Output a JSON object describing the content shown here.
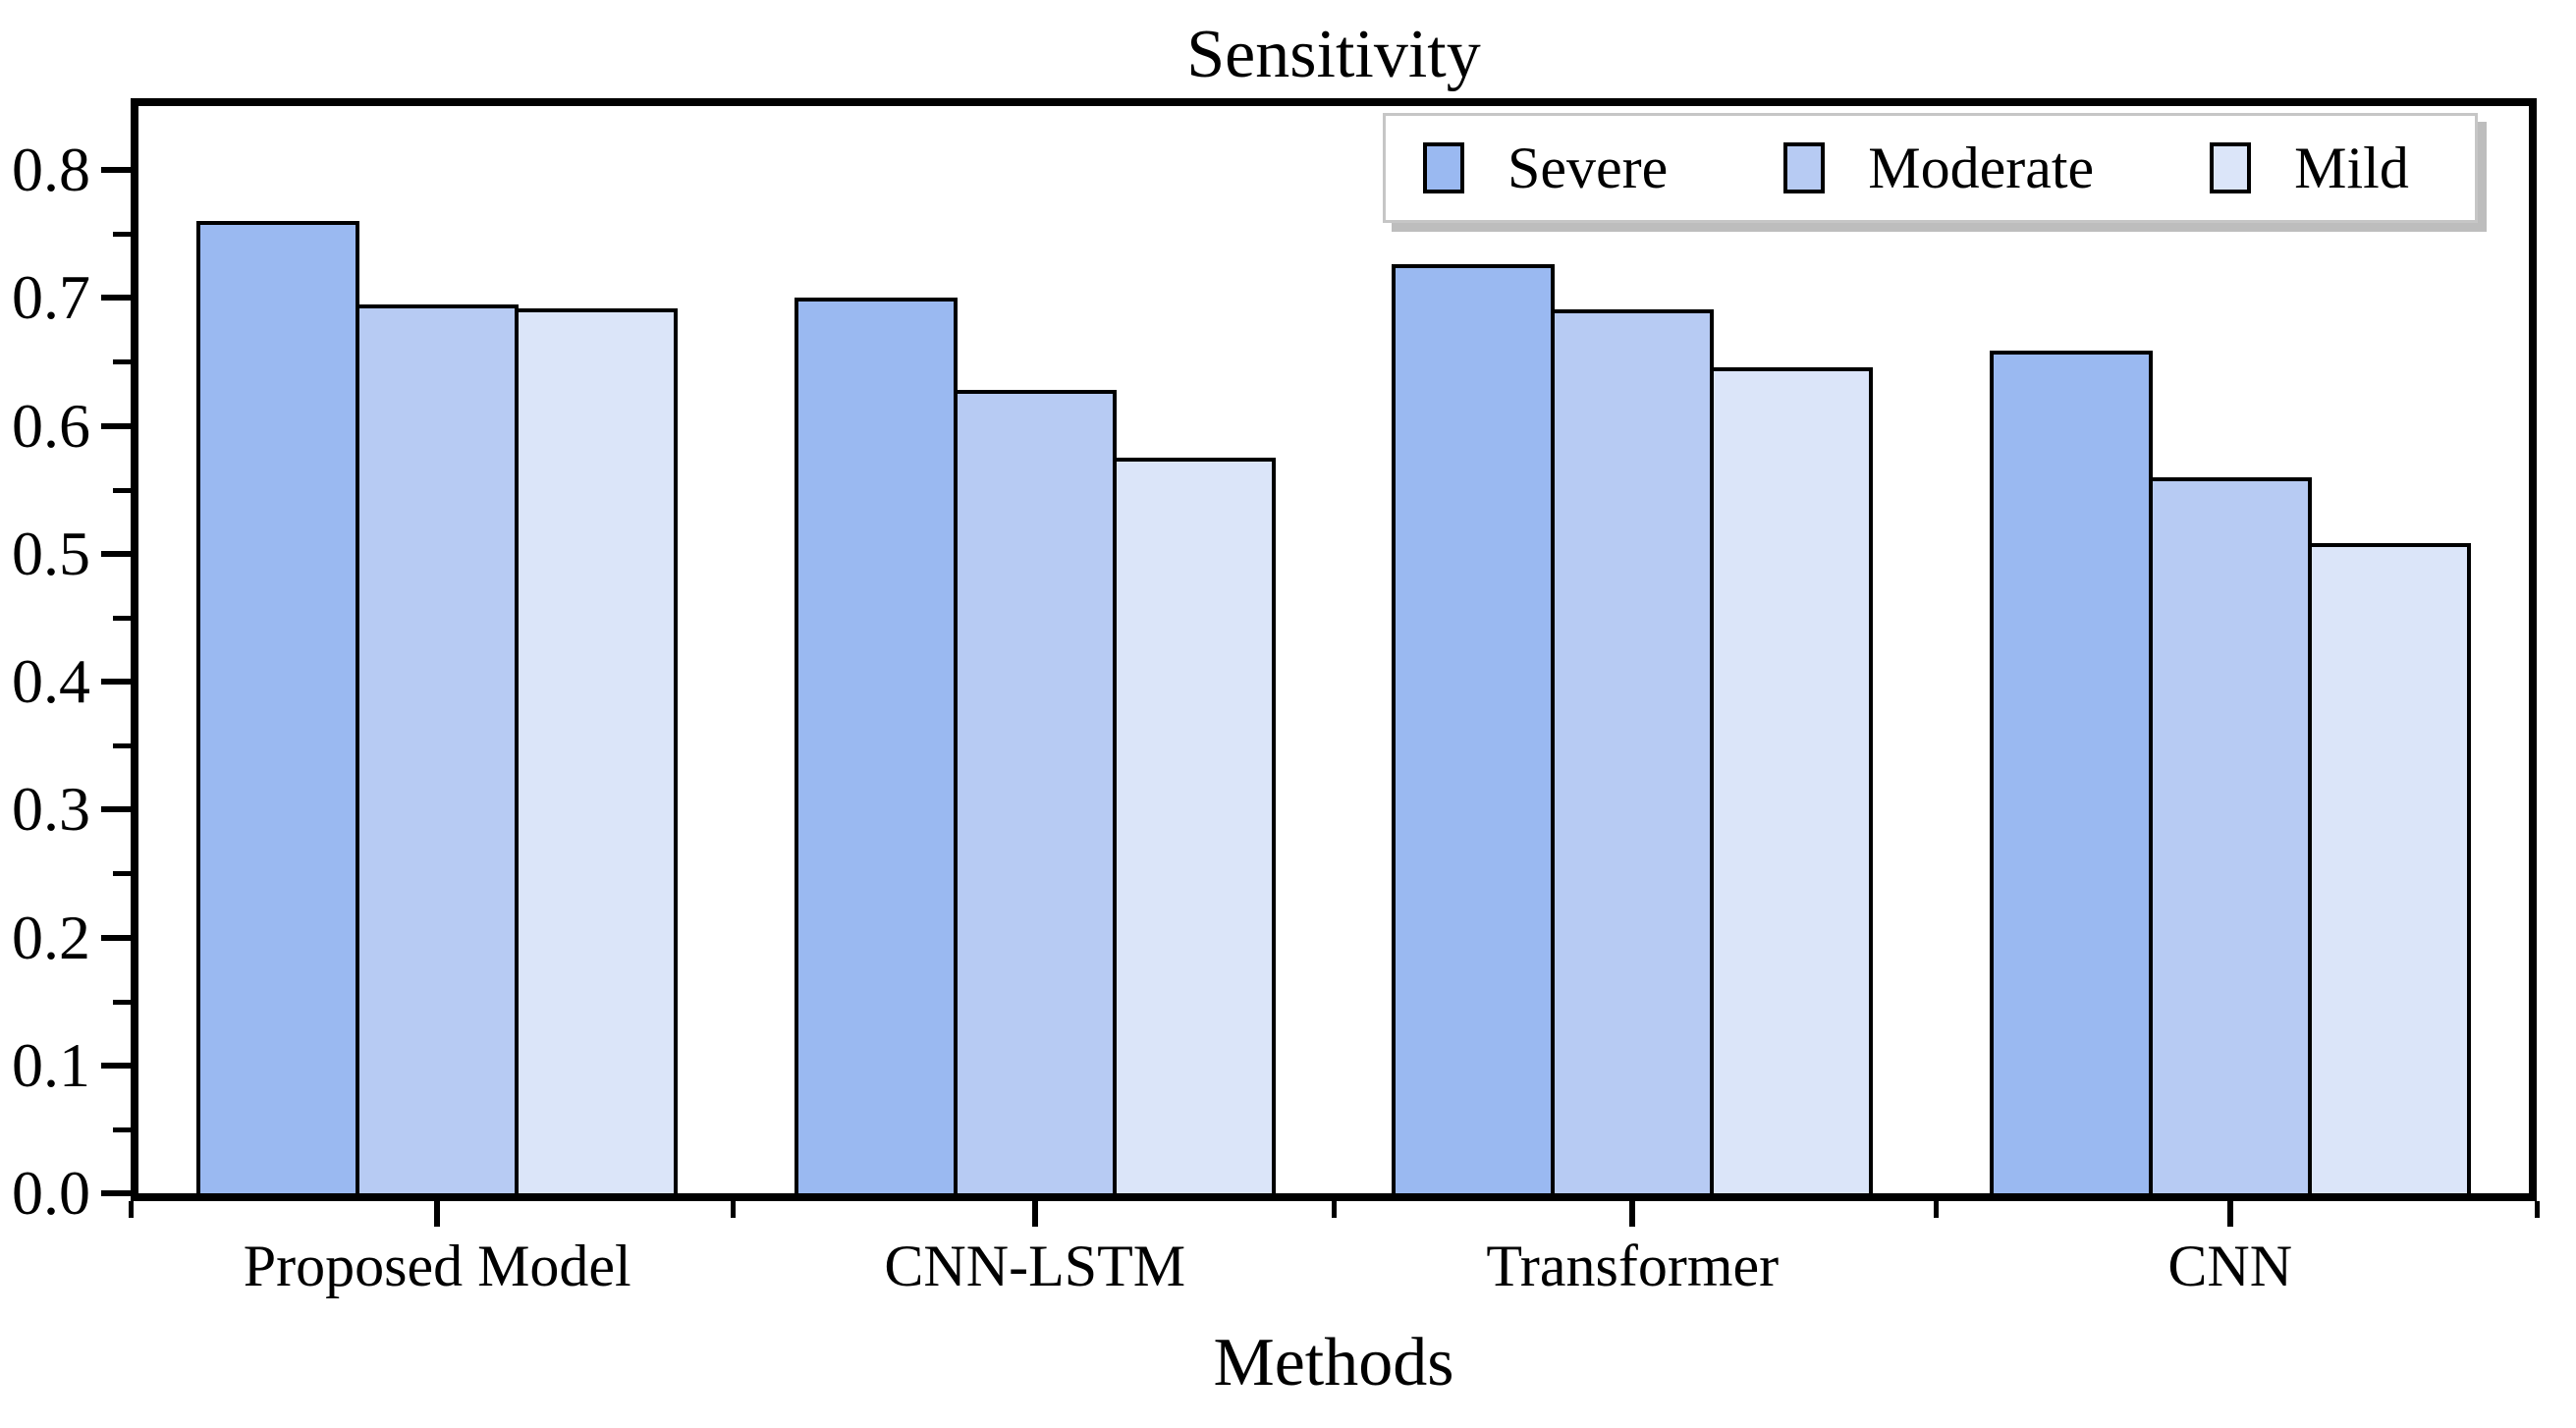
{
  "chart_data": {
    "type": "bar",
    "title": "Sensitivity",
    "xlabel": "Methods",
    "ylabel": "",
    "categories": [
      "Proposed Model",
      "CNN-LSTM",
      "Transformer",
      "CNN"
    ],
    "series": [
      {
        "name": "Severe",
        "color": "#9ab9f1",
        "values": [
          0.76,
          0.7,
          0.726,
          0.659
        ]
      },
      {
        "name": "Moderate",
        "color": "#b7cbf3",
        "values": [
          0.695,
          0.628,
          0.691,
          0.56
        ]
      },
      {
        "name": "Mild",
        "color": "#dbe5f9",
        "values": [
          0.692,
          0.575,
          0.646,
          0.508
        ]
      }
    ],
    "ylim": [
      0.0,
      0.85
    ],
    "yticks_major": [
      0.0,
      0.1,
      0.2,
      0.3,
      0.4,
      0.5,
      0.6,
      0.7,
      0.8
    ],
    "ytick_labels": [
      "0.0",
      "0.1",
      "0.2",
      "0.3",
      "0.4",
      "0.5",
      "0.6",
      "0.7",
      "0.8"
    ],
    "yticks_minor": [
      0.05,
      0.15,
      0.25,
      0.35,
      0.45,
      0.55,
      0.65,
      0.75
    ],
    "grid": false,
    "legend_position": "top-right",
    "bar_border_color": "#000000"
  },
  "style_colors": {
    "legend_border": "#c6c6c6",
    "legend_shadow": "#bdbdbd",
    "axis": "#000000"
  }
}
